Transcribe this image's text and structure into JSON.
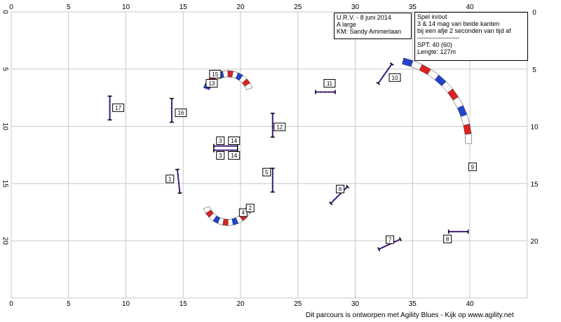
{
  "course": {
    "event_box": {
      "line1": "U.R.V. - 8 juni 2014",
      "line2": "A large",
      "line3": "KM: Sandy Ammerlaan"
    },
    "rules_box": {
      "line1": "Spel in/out",
      "line2": "3 & 14 mag van beide kanten",
      "line3": "bij een afje 2 seconden van tijd af",
      "separator": "--------------------",
      "line5": "SPT:  40 (60)",
      "line6": "Lengte: 127m"
    },
    "footer": "Dit parcours is ontworpen met Agility Blues - Kijk op www.agility.net"
  },
  "grid": {
    "x_ticks": [
      "0",
      "5",
      "10",
      "15",
      "20",
      "25",
      "30",
      "35",
      "40"
    ],
    "y_ticks": [
      "0",
      "5",
      "10",
      "15",
      "20"
    ],
    "x_max": 45,
    "y_max": 25,
    "step": 5
  },
  "obstacles": {
    "jumps": [
      {
        "num": "1",
        "x": 14.6,
        "y": 14.8,
        "angle": 84
      },
      {
        "num": "2",
        "x": 20.8,
        "y": 17.2,
        "angle": 0,
        "kind": "tunnel-end"
      },
      {
        "num": "5",
        "x": 22.8,
        "y": 14.7,
        "angle": 90
      },
      {
        "num": "6",
        "x": 28.6,
        "y": 16.0,
        "angle": -45
      },
      {
        "num": "7",
        "x": 33.0,
        "y": 20.3,
        "angle": -25
      },
      {
        "num": "8",
        "x": 39.0,
        "y": 19.2,
        "angle": 0
      },
      {
        "num": "10",
        "x": 32.6,
        "y": 5.4,
        "angle": -55
      },
      {
        "num": "11",
        "x": 27.4,
        "y": 7.0,
        "angle": 0
      },
      {
        "num": "12",
        "x": 22.8,
        "y": 9.9,
        "angle": 90
      },
      {
        "num": "16",
        "x": 14.0,
        "y": 8.6,
        "angle": 90
      },
      {
        "num": "17",
        "x": 8.6,
        "y": 8.4,
        "angle": 90
      }
    ],
    "double_jump": {
      "num_top": "3",
      "num_top2": "14",
      "num_bottom": "3",
      "num_bottom2": "14",
      "x": 18.7,
      "y": 11.9
    },
    "tunnels": [
      {
        "id": "tunnel-13-15",
        "cx": 18.9,
        "cy": 7.4,
        "r": 2.0,
        "start": 200,
        "end": 340,
        "num_a": "15",
        "num_b": "13"
      },
      {
        "id": "tunnel-2-4",
        "cx": 18.9,
        "cy": 16.4,
        "r": 2.0,
        "start": 20,
        "end": 160,
        "num_a": "4",
        "num_b": "2"
      },
      {
        "id": "tunnel-9",
        "cx": 32.5,
        "cy": 11.5,
        "r": 7.4,
        "start": 283,
        "end": 360,
        "num_a": "9",
        "num_b": ""
      }
    ]
  }
}
